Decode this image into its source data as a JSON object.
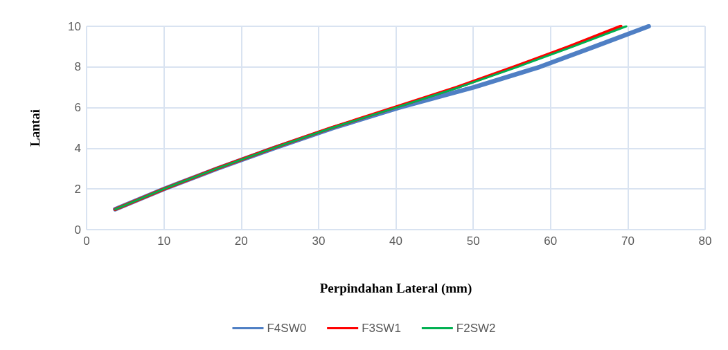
{
  "chart_data": {
    "type": "line",
    "xlabel": "Perpindahan Lateral (mm)",
    "ylabel": "Lantai",
    "xlim": [
      0,
      80
    ],
    "xticks": [
      0,
      10,
      20,
      30,
      40,
      50,
      60,
      70,
      80
    ],
    "ylim": [
      0,
      10
    ],
    "yticks": [
      0,
      2,
      4,
      6,
      8,
      10
    ],
    "grid": true,
    "legend": "bottom",
    "marker": "none",
    "line_style": "solid",
    "series": [
      {
        "name": "F4SW0",
        "color": "#4f7fc4",
        "x": [
          3.7,
          10.0,
          16.9,
          24.2,
          31.9,
          40.4,
          50.1,
          58.6,
          65.7,
          72.7
        ],
        "values": [
          1,
          2,
          3,
          4,
          5,
          6,
          7,
          8,
          9,
          10
        ]
      },
      {
        "name": "F3SW1",
        "color": "#ff0000",
        "x": [
          3.7,
          10.0,
          16.8,
          24.0,
          31.6,
          39.8,
          47.9,
          55.3,
          62.4,
          69.1
        ],
        "values": [
          1,
          2,
          3,
          4,
          5,
          6,
          7,
          8,
          9,
          10
        ]
      },
      {
        "name": "F2SW2",
        "color": "#00b050",
        "x": [
          3.7,
          10.0,
          16.8,
          24.1,
          31.7,
          40.0,
          48.2,
          55.7,
          62.9,
          69.8
        ],
        "values": [
          1,
          2,
          3,
          4,
          5,
          6,
          7,
          8,
          9,
          10
        ]
      }
    ]
  }
}
